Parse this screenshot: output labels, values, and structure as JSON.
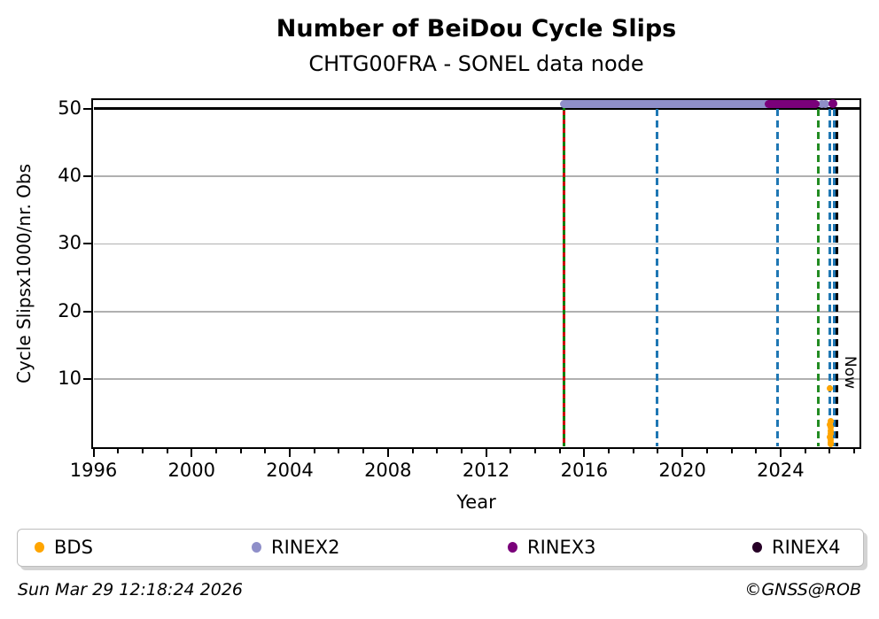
{
  "header": {
    "title": "Number of BeiDou Cycle Slips",
    "subtitle": "CHTG00FRA - SONEL data node"
  },
  "legend": {
    "items": [
      {
        "label": "BDS",
        "color": "#FFA500",
        "marker": "dot-icon"
      },
      {
        "label": "RINEX2",
        "color": "#8F8FC9",
        "marker": "dot-icon"
      },
      {
        "label": "RINEX3",
        "color": "#7A007A",
        "marker": "dot-icon"
      },
      {
        "label": "RINEX4",
        "color": "#260026",
        "marker": "dot-icon"
      }
    ]
  },
  "footer": {
    "timestamp": "Sun Mar 29 12:18:24 2026",
    "credit": "©GNSS@ROB"
  },
  "chart_data": {
    "type": "scatter",
    "title": "Number of BeiDou Cycle Slips",
    "subtitle": "CHTG00FRA - SONEL data node",
    "xlabel": "Year",
    "ylabel": "Cycle Slipsx1000/nr. Obs",
    "xlim": [
      1996,
      2027.2
    ],
    "ylim": [
      0,
      51.2
    ],
    "x_major_ticks": [
      1996,
      2000,
      2004,
      2008,
      2012,
      2016,
      2020,
      2024
    ],
    "x_minor_step": 1,
    "y_ticks": [
      10,
      20,
      30,
      40,
      50
    ],
    "y_gridlines": [
      10,
      20,
      30,
      40
    ],
    "grid_color": "#b0b0b0",
    "grid_on": true,
    "legend_position": "bottom-expanded",
    "threshold_line": {
      "y": 50,
      "color": "#000000"
    },
    "clip_value": 50.7,
    "series": [
      {
        "name": "BDS",
        "color": "#FFA500",
        "point_size": 7,
        "runs": [],
        "points": [
          [
            2026.0,
            8.6
          ],
          [
            2026.04,
            3.8
          ],
          [
            2026.02,
            3.3
          ],
          [
            2026.06,
            2.9
          ],
          [
            2026.03,
            2.4
          ],
          [
            2026.05,
            2.0
          ],
          [
            2026.02,
            1.5
          ],
          [
            2026.06,
            1.1
          ],
          [
            2026.04,
            0.7
          ],
          [
            2026.03,
            0.4
          ]
        ]
      },
      {
        "name": "RINEX2",
        "color": "#8F8FC9",
        "point_size": 9,
        "runs": [
          [
            2015.19,
            2023.64
          ]
        ],
        "run_value": 50.7,
        "points": [
          [
            2025.67,
            50.7
          ],
          [
            2025.83,
            50.7
          ]
        ]
      },
      {
        "name": "RINEX3",
        "color": "#7A007A",
        "point_size": 10,
        "runs": [
          [
            2023.5,
            2025.44
          ]
        ],
        "run_value": 50.7,
        "points": [
          [
            2026.13,
            50.7
          ]
        ]
      },
      {
        "name": "RINEX4",
        "color": "#260026",
        "point_size": 9,
        "runs": [],
        "points": []
      }
    ],
    "event_lines": [
      {
        "year": 2015.19,
        "style": "solid",
        "colors": [
          "#cc0000",
          "#008000"
        ],
        "from_value": 51.0
      },
      {
        "year": 2018.97,
        "style": "dashed",
        "colors": [
          "#1f77b4"
        ],
        "from_value": 50
      },
      {
        "year": 2023.89,
        "style": "dashed",
        "colors": [
          "#1f77b4"
        ],
        "from_value": 50
      },
      {
        "year": 2025.54,
        "style": "dashed",
        "colors": [
          "#228B22"
        ],
        "from_value": 50
      },
      {
        "year": 2026.01,
        "style": "dashed",
        "colors": [
          "#1f77b4"
        ],
        "from_value": 50
      },
      {
        "year": 2026.19,
        "style": "dashed",
        "colors": [
          "#1f77b4"
        ],
        "from_value": 50
      },
      {
        "year": 2026.31,
        "style": "dashed",
        "colors": [
          "#000000"
        ],
        "from_value": 50,
        "label": "Now"
      }
    ]
  }
}
